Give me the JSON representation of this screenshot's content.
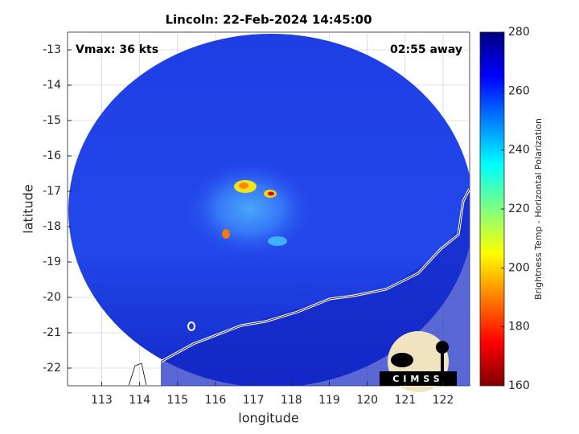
{
  "chart_data": {
    "type": "image",
    "title": "Lincoln: 22-Feb-2024 14:45:00",
    "annotations": [
      "Vmax: 36 kts",
      "02:55 away"
    ],
    "x_label": "longitude",
    "y_label": "latitude",
    "xlim": [
      112.1,
      122.7
    ],
    "xticks": [
      113,
      114,
      115,
      116,
      117,
      118,
      119,
      120,
      121,
      122
    ],
    "ylim": [
      -22.5,
      -12.5
    ],
    "yticks": [
      -13,
      -14,
      -15,
      -16,
      -17,
      -18,
      -19,
      -20,
      -21,
      -22
    ],
    "grid": true,
    "colorbar": {
      "label": "Brightness Temp - Horizontal Polarization",
      "colormap": "jet",
      "lim": [
        160,
        280
      ],
      "ticks": [
        160,
        180,
        200,
        220,
        240,
        260,
        280
      ]
    },
    "logo": "CIMSS"
  }
}
